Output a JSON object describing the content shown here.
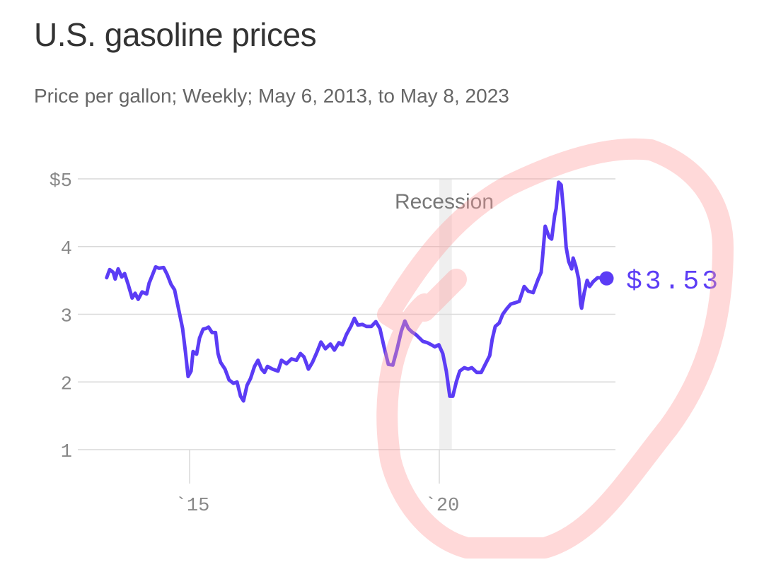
{
  "colors": {
    "line": "#5b3cf5",
    "grid": "#d9d9d9",
    "recession": "#efefef",
    "annotation": "#ff9c9c"
  },
  "chart_data": {
    "type": "line",
    "title": "U.S. gasoline prices",
    "subtitle": "Price per gallon; Weekly; May 6, 2013, to May 8, 2023",
    "xlabel": "",
    "ylabel": "",
    "ylim": [
      1,
      5
    ],
    "xlim": [
      2013.35,
      2023.35
    ],
    "yticks": [
      {
        "value": 5,
        "label": "$5"
      },
      {
        "value": 4,
        "label": "4"
      },
      {
        "value": 3,
        "label": "3"
      },
      {
        "value": 2,
        "label": "2"
      },
      {
        "value": 1,
        "label": "1"
      }
    ],
    "xticks": [
      {
        "value": 2015,
        "label": "`15"
      },
      {
        "value": 2020,
        "label": "`20"
      }
    ],
    "grid": true,
    "recession": {
      "label": "Recession",
      "start": 2020.0,
      "end": 2020.25
    },
    "end_label": "$3.53",
    "series": [
      {
        "name": "Price per gallon",
        "points": [
          [
            2013.34,
            3.54
          ],
          [
            2013.4,
            3.66
          ],
          [
            2013.47,
            3.62
          ],
          [
            2013.51,
            3.52
          ],
          [
            2013.57,
            3.67
          ],
          [
            2013.64,
            3.55
          ],
          [
            2013.7,
            3.6
          ],
          [
            2013.77,
            3.44
          ],
          [
            2013.85,
            3.24
          ],
          [
            2013.91,
            3.31
          ],
          [
            2013.97,
            3.22
          ],
          [
            2014.05,
            3.33
          ],
          [
            2014.14,
            3.3
          ],
          [
            2014.19,
            3.46
          ],
          [
            2014.25,
            3.57
          ],
          [
            2014.32,
            3.7
          ],
          [
            2014.39,
            3.68
          ],
          [
            2014.48,
            3.69
          ],
          [
            2014.55,
            3.59
          ],
          [
            2014.63,
            3.44
          ],
          [
            2014.7,
            3.36
          ],
          [
            2014.77,
            3.11
          ],
          [
            2014.86,
            2.79
          ],
          [
            2014.92,
            2.42
          ],
          [
            2014.97,
            2.08
          ],
          [
            2015.03,
            2.16
          ],
          [
            2015.07,
            2.45
          ],
          [
            2015.14,
            2.41
          ],
          [
            2015.2,
            2.65
          ],
          [
            2015.27,
            2.78
          ],
          [
            2015.33,
            2.79
          ],
          [
            2015.38,
            2.81
          ],
          [
            2015.45,
            2.73
          ],
          [
            2015.52,
            2.73
          ],
          [
            2015.57,
            2.42
          ],
          [
            2015.62,
            2.29
          ],
          [
            2015.71,
            2.19
          ],
          [
            2015.79,
            2.03
          ],
          [
            2015.88,
            1.98
          ],
          [
            2015.95,
            2.0
          ],
          [
            2016.02,
            1.79
          ],
          [
            2016.08,
            1.72
          ],
          [
            2016.15,
            1.95
          ],
          [
            2016.22,
            2.05
          ],
          [
            2016.3,
            2.23
          ],
          [
            2016.37,
            2.32
          ],
          [
            2016.44,
            2.19
          ],
          [
            2016.5,
            2.14
          ],
          [
            2016.56,
            2.23
          ],
          [
            2016.66,
            2.19
          ],
          [
            2016.77,
            2.16
          ],
          [
            2016.84,
            2.32
          ],
          [
            2016.94,
            2.27
          ],
          [
            2017.04,
            2.34
          ],
          [
            2017.14,
            2.32
          ],
          [
            2017.22,
            2.42
          ],
          [
            2017.29,
            2.37
          ],
          [
            2017.38,
            2.19
          ],
          [
            2017.46,
            2.29
          ],
          [
            2017.55,
            2.44
          ],
          [
            2017.63,
            2.59
          ],
          [
            2017.72,
            2.49
          ],
          [
            2017.82,
            2.56
          ],
          [
            2017.9,
            2.47
          ],
          [
            2017.99,
            2.58
          ],
          [
            2018.06,
            2.55
          ],
          [
            2018.14,
            2.7
          ],
          [
            2018.23,
            2.82
          ],
          [
            2018.3,
            2.94
          ],
          [
            2018.37,
            2.84
          ],
          [
            2018.46,
            2.85
          ],
          [
            2018.54,
            2.82
          ],
          [
            2018.64,
            2.82
          ],
          [
            2018.73,
            2.89
          ],
          [
            2018.81,
            2.79
          ],
          [
            2018.9,
            2.5
          ],
          [
            2018.98,
            2.26
          ],
          [
            2019.07,
            2.25
          ],
          [
            2019.15,
            2.47
          ],
          [
            2019.24,
            2.75
          ],
          [
            2019.31,
            2.9
          ],
          [
            2019.38,
            2.79
          ],
          [
            2019.45,
            2.74
          ],
          [
            2019.53,
            2.7
          ],
          [
            2019.6,
            2.65
          ],
          [
            2019.67,
            2.6
          ],
          [
            2019.76,
            2.58
          ],
          [
            2019.84,
            2.55
          ],
          [
            2019.91,
            2.52
          ],
          [
            2019.99,
            2.55
          ],
          [
            2020.07,
            2.42
          ],
          [
            2020.14,
            2.16
          ],
          [
            2020.21,
            1.79
          ],
          [
            2020.27,
            1.79
          ],
          [
            2020.34,
            2.0
          ],
          [
            2020.41,
            2.16
          ],
          [
            2020.5,
            2.21
          ],
          [
            2020.58,
            2.19
          ],
          [
            2020.65,
            2.21
          ],
          [
            2020.75,
            2.14
          ],
          [
            2020.84,
            2.14
          ],
          [
            2020.92,
            2.26
          ],
          [
            2021.01,
            2.39
          ],
          [
            2021.06,
            2.63
          ],
          [
            2021.12,
            2.82
          ],
          [
            2021.2,
            2.87
          ],
          [
            2021.27,
            3.0
          ],
          [
            2021.35,
            3.08
          ],
          [
            2021.43,
            3.15
          ],
          [
            2021.52,
            3.17
          ],
          [
            2021.6,
            3.19
          ],
          [
            2021.7,
            3.41
          ],
          [
            2021.78,
            3.34
          ],
          [
            2021.88,
            3.32
          ],
          [
            2021.98,
            3.52
          ],
          [
            2022.04,
            3.62
          ],
          [
            2022.07,
            3.86
          ],
          [
            2022.12,
            4.3
          ],
          [
            2022.2,
            4.14
          ],
          [
            2022.25,
            4.11
          ],
          [
            2022.31,
            4.46
          ],
          [
            2022.34,
            4.56
          ],
          [
            2022.39,
            4.95
          ],
          [
            2022.44,
            4.91
          ],
          [
            2022.49,
            4.51
          ],
          [
            2022.54,
            3.99
          ],
          [
            2022.59,
            3.78
          ],
          [
            2022.65,
            3.67
          ],
          [
            2022.68,
            3.83
          ],
          [
            2022.73,
            3.72
          ],
          [
            2022.79,
            3.52
          ],
          [
            2022.83,
            3.15
          ],
          [
            2022.85,
            3.09
          ],
          [
            2022.9,
            3.31
          ],
          [
            2022.96,
            3.5
          ],
          [
            2023.01,
            3.41
          ],
          [
            2023.08,
            3.48
          ],
          [
            2023.17,
            3.54
          ],
          [
            2023.35,
            3.53
          ]
        ]
      }
    ]
  }
}
